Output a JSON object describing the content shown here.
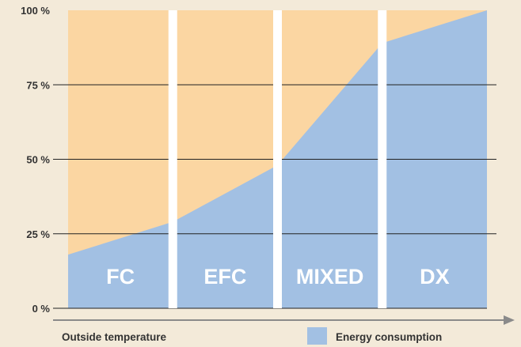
{
  "colors": {
    "background": "#f3ead9",
    "remainder_area": "#fbd6a2",
    "energy_area": "#a2c0e3",
    "separator": "#ffffff",
    "gridline": "#222222",
    "axis_arrow": "#8a8a8a",
    "text": "#333333"
  },
  "chart_data": {
    "type": "area",
    "title": "",
    "xlabel": "Outside temperature",
    "ylabel": "",
    "ylim": [
      0,
      100
    ],
    "yticks": [
      "0 %",
      "25 %",
      "50 %",
      "75 %",
      "100 %"
    ],
    "ytick_values": [
      0,
      25,
      50,
      75,
      100
    ],
    "grid": true,
    "legend": {
      "position": "bottom-right",
      "label": "Energy consumption"
    },
    "x_axis_has_arrow": true,
    "segments": [
      "FC",
      "EFC",
      "MIXED",
      "DX"
    ],
    "series": [
      {
        "name": "Energy consumption",
        "x": [
          0,
          1,
          2,
          3,
          4
        ],
        "y": [
          18,
          29,
          48,
          89,
          100
        ]
      }
    ]
  }
}
